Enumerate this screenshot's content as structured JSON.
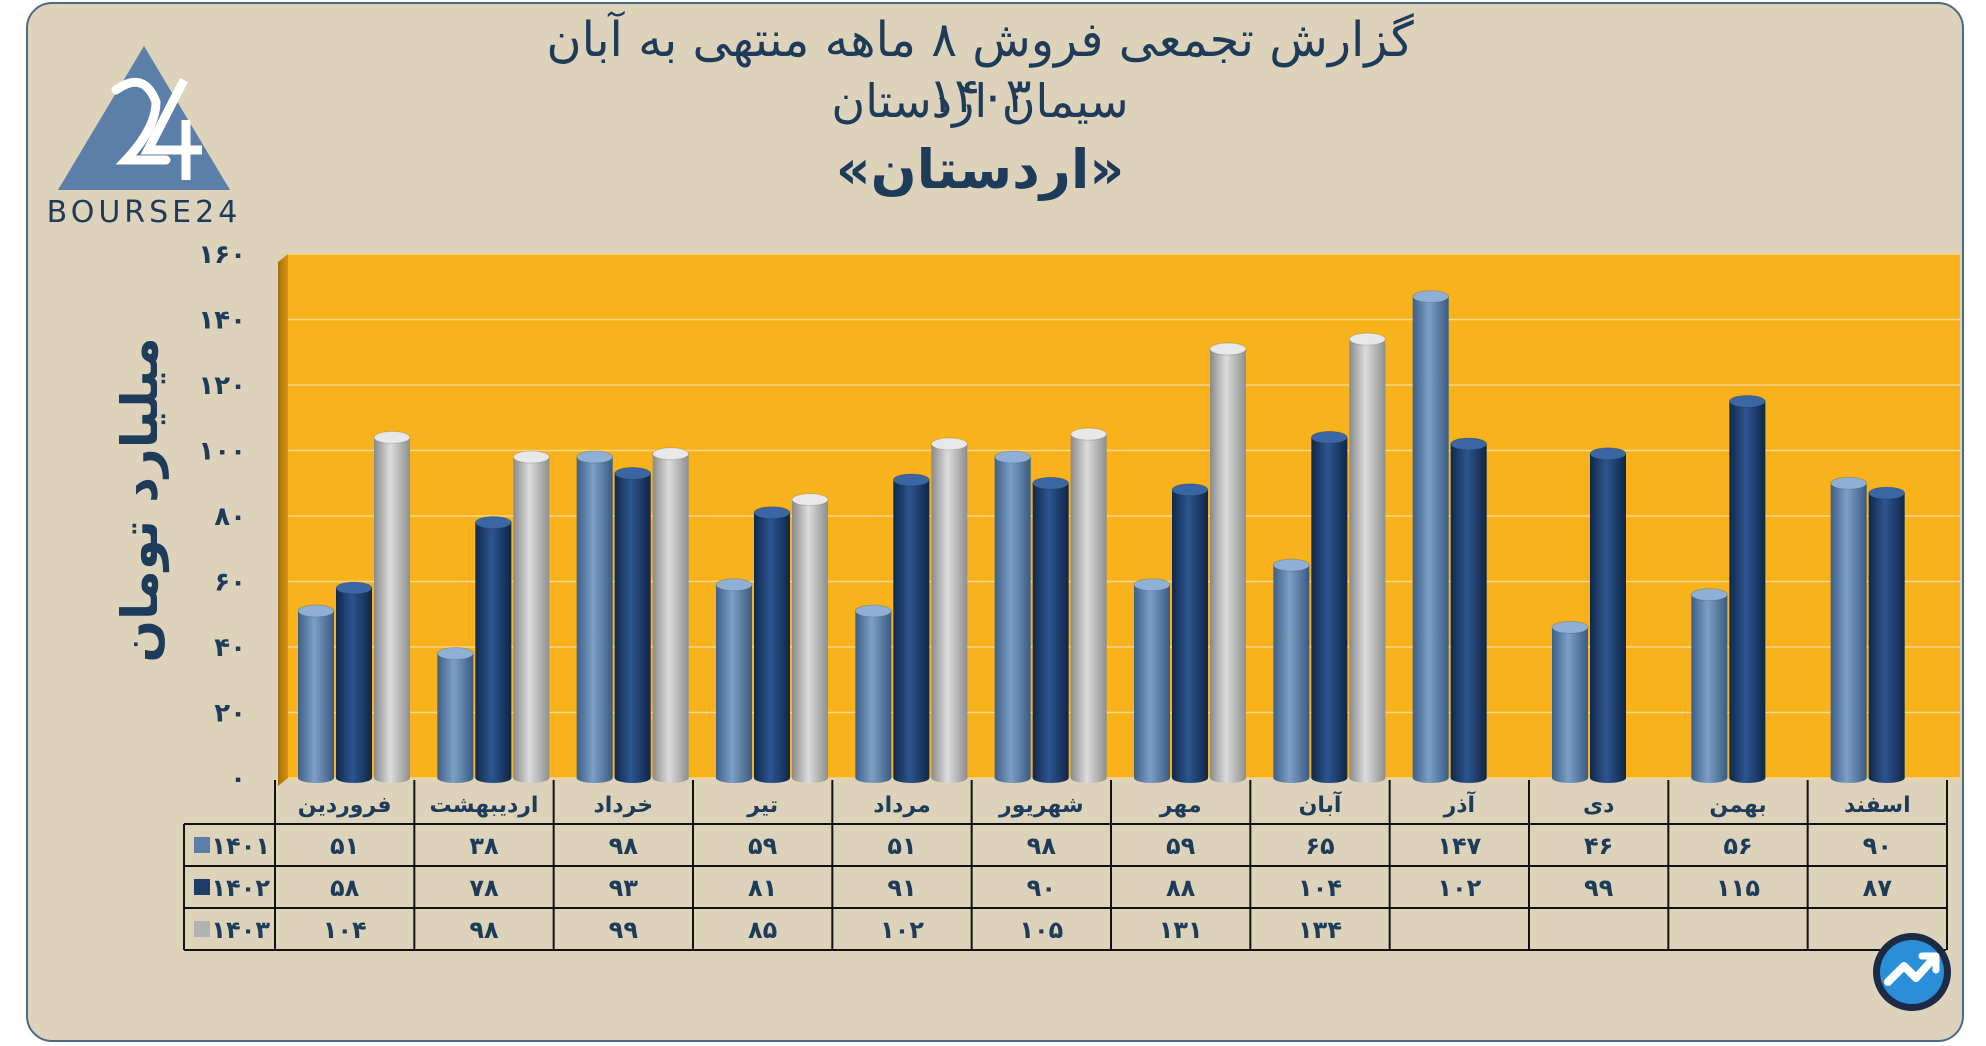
{
  "header": {
    "title_line1": "گزارش تجمعی فروش ۸ ماهه منتهی به آبان ۱۴۰۳",
    "title_line2": "سیمان اردستان",
    "title_line3": "«اردستان»"
  },
  "logo": {
    "text": "BOURSE24",
    "icon": "bourse24-triangle-logo"
  },
  "badge": {
    "icon": "trend-up-circle-icon"
  },
  "colors": {
    "background": "#ddd3bb",
    "plot_area": "#f7b21c",
    "series_1401": "#5b7fa8",
    "series_1402": "#1d3d68",
    "series_1403": "#b2b2b2",
    "text": "#1f3b5a"
  },
  "chart_data": {
    "type": "bar",
    "title": "گزارش تجمعی فروش ۸ ماهه منتهی به آبان ۱۴۰۳",
    "ylabel": "میلیارد تومان",
    "xlabel": "",
    "ylim": [
      0,
      160
    ],
    "yticks": [
      0,
      20,
      40,
      60,
      80,
      100,
      120,
      140,
      160
    ],
    "ytick_labels": [
      "۰",
      "۲۰",
      "۴۰",
      "۶۰",
      "۸۰",
      "۱۰۰",
      "۱۲۰",
      "۱۴۰",
      "۱۶۰"
    ],
    "grid": true,
    "categories": [
      "فروردین",
      "اردیبهشت",
      "خرداد",
      "تیر",
      "مرداد",
      "شهریور",
      "مهر",
      "آبان",
      "آذر",
      "دی",
      "بهمن",
      "اسفند"
    ],
    "series": [
      {
        "name": "۱۴۰۱",
        "values": [
          51,
          38,
          98,
          59,
          51,
          98,
          59,
          65,
          147,
          46,
          56,
          90
        ],
        "labels": [
          "۵۱",
          "۳۸",
          "۹۸",
          "۵۹",
          "۵۱",
          "۹۸",
          "۵۹",
          "۶۵",
          "۱۴۷",
          "۴۶",
          "۵۶",
          "۹۰"
        ]
      },
      {
        "name": "۱۴۰۲",
        "values": [
          58,
          78,
          93,
          81,
          91,
          90,
          88,
          104,
          102,
          99,
          115,
          87
        ],
        "labels": [
          "۵۸",
          "۷۸",
          "۹۳",
          "۸۱",
          "۹۱",
          "۹۰",
          "۸۸",
          "۱۰۴",
          "۱۰۲",
          "۹۹",
          "۱۱۵",
          "۸۷"
        ]
      },
      {
        "name": "۱۴۰۳",
        "values": [
          104,
          98,
          99,
          85,
          102,
          105,
          131,
          134,
          null,
          null,
          null,
          null
        ],
        "labels": [
          "۱۰۴",
          "۹۸",
          "۹۹",
          "۸۵",
          "۱۰۲",
          "۱۰۵",
          "۱۳۱",
          "۱۳۴",
          "",
          "",
          "",
          ""
        ]
      }
    ],
    "data_table": true
  }
}
